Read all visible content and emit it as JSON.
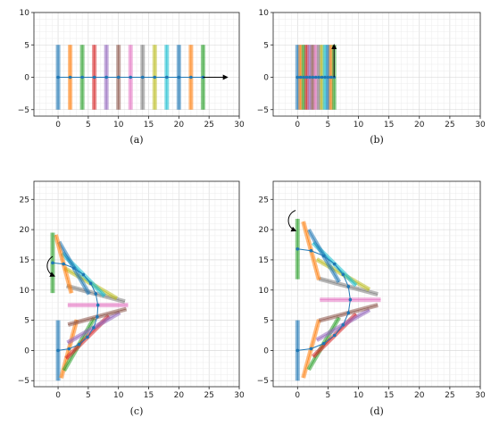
{
  "palette": [
    "#1f77b4",
    "#ff7f0e",
    "#2ca02c",
    "#d62728",
    "#9467bd",
    "#8c564b",
    "#e377c2",
    "#7f7f7f",
    "#bcbd22",
    "#17becf"
  ],
  "chart_data": [
    {
      "type": "line",
      "caption": "(a)",
      "xlim": [
        -4,
        30
      ],
      "ylim": [
        -6,
        10
      ],
      "xticks": [
        0,
        5,
        10,
        15,
        20,
        25,
        30
      ],
      "yticks": [
        -5,
        0,
        5,
        10
      ],
      "grid": true,
      "bars": [
        [
          0,
          0,
          90
        ],
        [
          2,
          0,
          90
        ],
        [
          4,
          0,
          90
        ],
        [
          6,
          0,
          90
        ],
        [
          8,
          0,
          90
        ],
        [
          10,
          0,
          90
        ],
        [
          12,
          0,
          90
        ],
        [
          14,
          0,
          90
        ],
        [
          16,
          0,
          90
        ],
        [
          18,
          0,
          90
        ],
        [
          20,
          0,
          90
        ],
        [
          22,
          0,
          90
        ],
        [
          24,
          0,
          90
        ]
      ],
      "bar_length": 10,
      "path": {
        "x": [
          0,
          2,
          4,
          6,
          8,
          10,
          12,
          14,
          16,
          18,
          20,
          22,
          24
        ],
        "y": [
          0,
          0,
          0,
          0,
          0,
          0,
          0,
          0,
          0,
          0,
          0,
          0,
          0
        ]
      },
      "arrow": {
        "type": "straight",
        "from": [
          24,
          0
        ],
        "to": [
          28,
          0
        ]
      }
    },
    {
      "type": "line",
      "caption": "(b)",
      "xlim": [
        -4,
        30
      ],
      "ylim": [
        -6,
        10
      ],
      "xticks": [
        0,
        5,
        10,
        15,
        20,
        25,
        30
      ],
      "yticks": [
        -5,
        0,
        5,
        10
      ],
      "grid": true,
      "bars": [
        [
          0,
          0,
          90
        ],
        [
          0.5,
          0,
          90
        ],
        [
          1,
          0,
          90
        ],
        [
          1.5,
          0,
          90
        ],
        [
          2,
          0,
          90
        ],
        [
          2.5,
          0,
          90
        ],
        [
          3,
          0,
          90
        ],
        [
          3.5,
          0,
          90
        ],
        [
          4,
          0,
          90
        ],
        [
          4.5,
          0,
          90
        ],
        [
          5,
          0,
          90
        ],
        [
          5.5,
          0,
          90
        ],
        [
          6,
          0,
          90
        ]
      ],
      "bar_length": 10,
      "path": {
        "x": [
          0,
          0.5,
          1,
          1.5,
          2,
          2.5,
          3,
          3.5,
          4,
          4.5,
          5,
          5.5,
          6
        ],
        "y": [
          0,
          0,
          0,
          0,
          0,
          0,
          0,
          0,
          0,
          0,
          0,
          0,
          0
        ]
      },
      "arrow": {
        "type": "straight",
        "from": [
          6,
          0
        ],
        "to": [
          6,
          5
        ]
      }
    },
    {
      "type": "line",
      "caption": "(c)",
      "xlim": [
        -4,
        30
      ],
      "ylim": [
        -6,
        28
      ],
      "xticks": [
        0,
        5,
        10,
        15,
        20,
        25,
        30
      ],
      "yticks": [
        -5,
        0,
        5,
        10,
        15,
        20,
        25
      ],
      "grid": true,
      "bars": [
        [
          0,
          0,
          90
        ],
        [
          1.81,
          0.26,
          75
        ],
        [
          3.48,
          1.01,
          60
        ],
        [
          4.87,
          2.21,
          45
        ],
        [
          5.89,
          3.77,
          30
        ],
        [
          6.48,
          5.57,
          15
        ],
        [
          6.6,
          7.5,
          0
        ],
        [
          6.24,
          9.38,
          -15
        ],
        [
          5.41,
          11.1,
          -30
        ],
        [
          4.18,
          12.55,
          -45
        ],
        [
          2.64,
          13.64,
          -60
        ],
        [
          0.91,
          14.31,
          -75
        ],
        [
          -0.9,
          14.5,
          -90
        ]
      ],
      "bar_length": 10,
      "path": {
        "x": [
          0,
          1.81,
          3.48,
          4.87,
          5.89,
          6.48,
          6.6,
          6.24,
          5.41,
          4.18,
          2.64,
          0.91,
          -0.9
        ],
        "y": [
          0,
          0.26,
          1.01,
          2.21,
          3.77,
          5.57,
          7.5,
          9.38,
          11.1,
          12.55,
          13.64,
          14.31,
          14.5
        ]
      },
      "arrow": {
        "type": "curved",
        "center": [
          0,
          14
        ],
        "radius": 1.8,
        "from_deg": 120,
        "to_deg": 250
      }
    },
    {
      "type": "line",
      "caption": "(d)",
      "xlim": [
        -4,
        30
      ],
      "ylim": [
        -6,
        28
      ],
      "xticks": [
        0,
        5,
        10,
        15,
        20,
        25,
        30
      ],
      "yticks": [
        -5,
        0,
        5,
        10,
        15,
        20,
        25
      ],
      "grid": true,
      "bars": [
        [
          0,
          0,
          90
        ],
        [
          2.23,
          0.29,
          75
        ],
        [
          4.31,
          1.15,
          60
        ],
        [
          6.08,
          2.5,
          45
        ],
        [
          7.47,
          4.23,
          30
        ],
        [
          8.35,
          6.22,
          15
        ],
        [
          8.66,
          8.4,
          0
        ],
        [
          8.35,
          10.58,
          -15
        ],
        [
          7.47,
          12.57,
          -30
        ],
        [
          6.08,
          14.3,
          -45
        ],
        [
          4.31,
          15.65,
          -60
        ],
        [
          2.23,
          16.51,
          -75
        ],
        [
          0,
          16.8,
          -90
        ]
      ],
      "bar_length": 10,
      "path": {
        "x": [
          0,
          2.23,
          4.31,
          6.08,
          7.47,
          8.35,
          8.66,
          8.35,
          7.47,
          6.08,
          4.31,
          2.23,
          0
        ],
        "y": [
          0,
          0.29,
          1.15,
          2.5,
          4.23,
          6.22,
          8.4,
          10.58,
          12.57,
          14.3,
          15.65,
          16.51,
          16.8
        ]
      },
      "arrow": {
        "type": "curved",
        "center": [
          0.3,
          21.5
        ],
        "radius": 1.8,
        "from_deg": 110,
        "to_deg": 250
      }
    }
  ]
}
